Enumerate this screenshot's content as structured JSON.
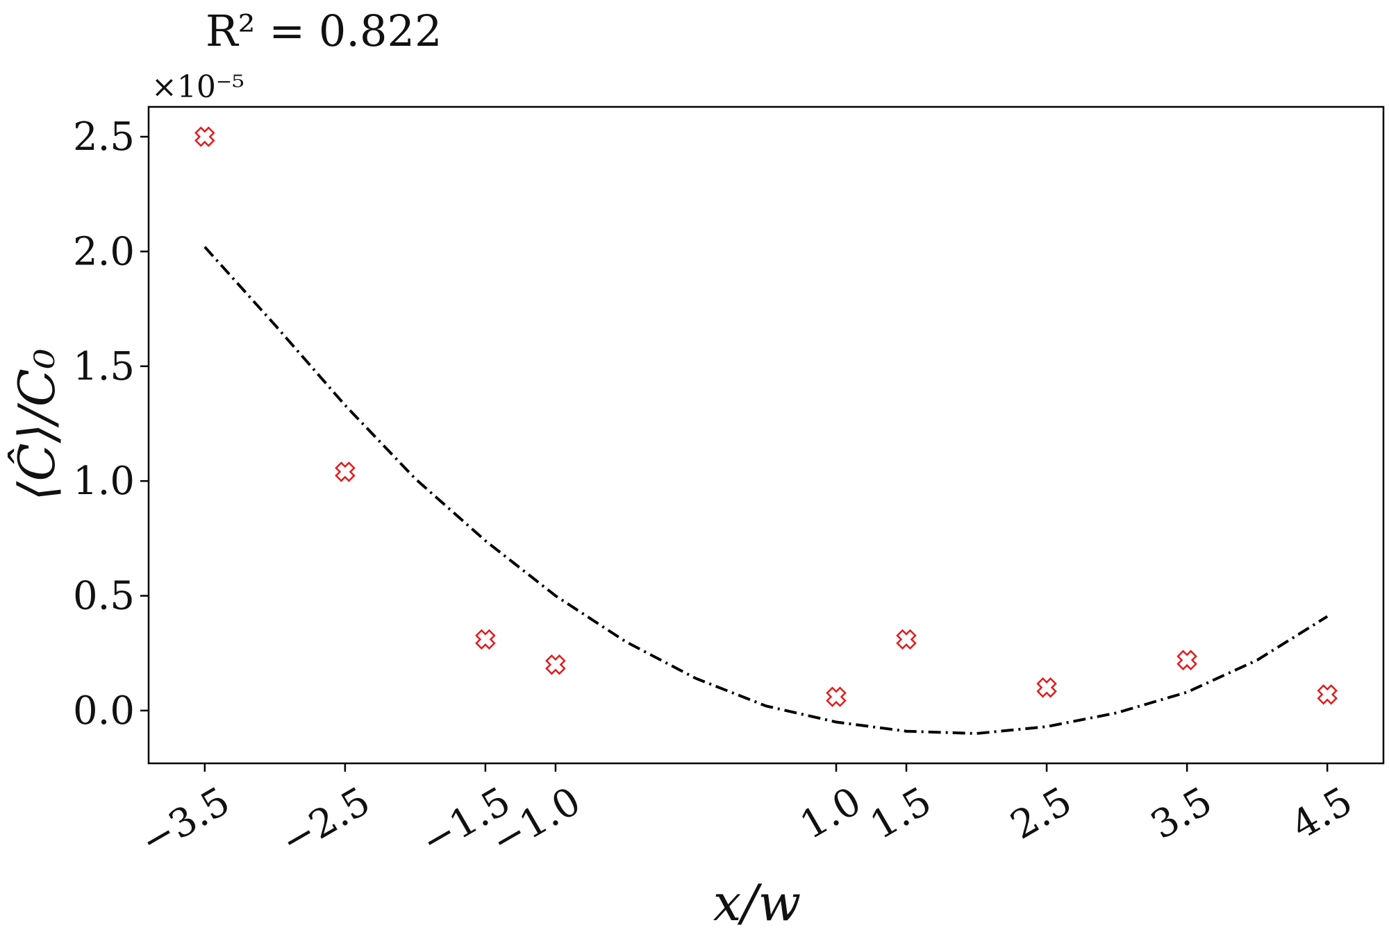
{
  "chart_data": {
    "type": "scatter",
    "annotation": "R² = 0.822",
    "y_offset_label": "×10⁻⁵",
    "xlabel": "x/w",
    "ylabel": "⟨Ĉ⟩/C₀",
    "xlim": [
      -3.9,
      4.9
    ],
    "ylim": [
      -0.23,
      2.63
    ],
    "y_scale_factor": 1e-05,
    "x_ticks": [
      -3.5,
      -2.5,
      -1.5,
      -1.0,
      1.0,
      1.5,
      2.5,
      3.5,
      4.5
    ],
    "x_tick_labels": [
      "−3.5",
      "−2.5",
      "−1.5",
      "−1.0",
      "1.0",
      "1.5",
      "2.5",
      "3.5",
      "4.5"
    ],
    "y_ticks": [
      0.0,
      0.5,
      1.0,
      1.5,
      2.0,
      2.5
    ],
    "y_tick_labels": [
      "0.0",
      "0.5",
      "1.0",
      "1.5",
      "2.0",
      "2.5"
    ],
    "grid": false,
    "series": [
      {
        "kind": "points",
        "marker": "x-filled",
        "color": "#e31a1c",
        "x": [
          -3.5,
          -2.5,
          -1.5,
          -1.0,
          1.0,
          1.5,
          2.5,
          3.5,
          4.5
        ],
        "y": [
          2.5,
          1.04,
          0.31,
          0.2,
          0.06,
          0.31,
          0.1,
          0.22,
          0.07
        ]
      },
      {
        "kind": "fit",
        "linestyle": "dash-dot",
        "color": "#000000",
        "x": [
          -3.5,
          -3.0,
          -2.5,
          -2.0,
          -1.5,
          -1.0,
          -0.5,
          0.0,
          0.5,
          1.0,
          1.5,
          2.0,
          2.5,
          3.0,
          3.5,
          4.0,
          4.5
        ],
        "y": [
          2.02,
          1.68,
          1.33,
          1.01,
          0.74,
          0.5,
          0.3,
          0.14,
          0.02,
          -0.05,
          -0.09,
          -0.1,
          -0.07,
          -0.01,
          0.08,
          0.22,
          0.41
        ]
      }
    ]
  }
}
